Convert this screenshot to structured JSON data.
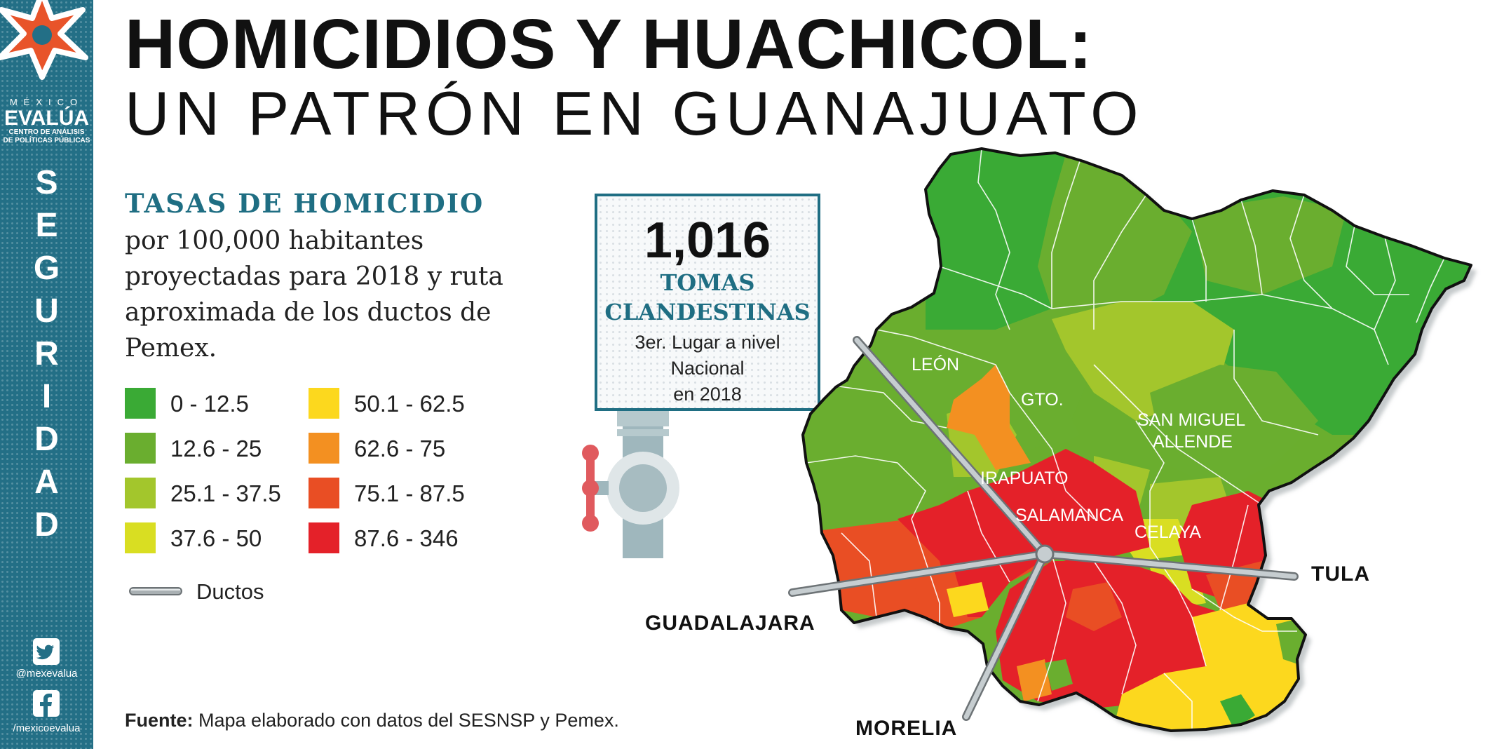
{
  "brand": {
    "line1": "MÉXICO",
    "name": "EVALÚA",
    "sub1": "CENTRO DE ANÁLISIS",
    "sub2": "DE POLÍTICAS PÚBLICAS",
    "section": [
      "S",
      "E",
      "G",
      "U",
      "R",
      "I",
      "D",
      "A",
      "D"
    ],
    "twitter": "@mexevalua",
    "facebook": "/mexicoevalua",
    "star_color": "#e8542a",
    "sidebar_color": "#236f86"
  },
  "title": {
    "main": "HOMICIDIOS Y HUACHICOL:",
    "sub": "UN PATRÓN EN GUANAJUATO"
  },
  "description": {
    "heading": "TASAS DE HOMICIDIO",
    "body": "por 100,000 habitantes proyectadas para 2018 y ruta aproximada de los ductos de Pemex."
  },
  "legend": {
    "items": [
      {
        "label": "0 - 12.5",
        "color": "#3aaa35"
      },
      {
        "label": "12.6 - 25",
        "color": "#6aae2f"
      },
      {
        "label": "25.1 - 37.5",
        "color": "#a3c62c"
      },
      {
        "label": "37.6 - 50",
        "color": "#d9de22"
      },
      {
        "label": "50.1 - 62.5",
        "color": "#fcd81e"
      },
      {
        "label": "62.6 - 75",
        "color": "#f39021"
      },
      {
        "label": "75.1 - 87.5",
        "color": "#e94e24"
      },
      {
        "label": "87.6 - 346",
        "color": "#e42129"
      }
    ],
    "pipeline_label": "Ductos"
  },
  "callout": {
    "number": "1,016",
    "label1": "TOMAS",
    "label2": "CLANDESTINAS",
    "note_line1": "3er. Lugar a nivel",
    "note_line2": "Nacional",
    "note_line3": "en 2018"
  },
  "map": {
    "region_labels": {
      "leon": "LEÓN",
      "gto": "GTO.",
      "san_miguel_1": "SAN MIGUEL",
      "san_miguel_2": "ALLENDE",
      "irapuato": "IRAPUATO",
      "salamanca": "SALAMANCA",
      "celaya": "CELAYA"
    },
    "destinations": {
      "tula": "TULA",
      "guadalajara": "GUADALAJARA",
      "morelia": "MORELIA"
    }
  },
  "source": {
    "label": "Fuente:",
    "text": "Mapa elaborado con datos del SESNSP y Pemex."
  }
}
